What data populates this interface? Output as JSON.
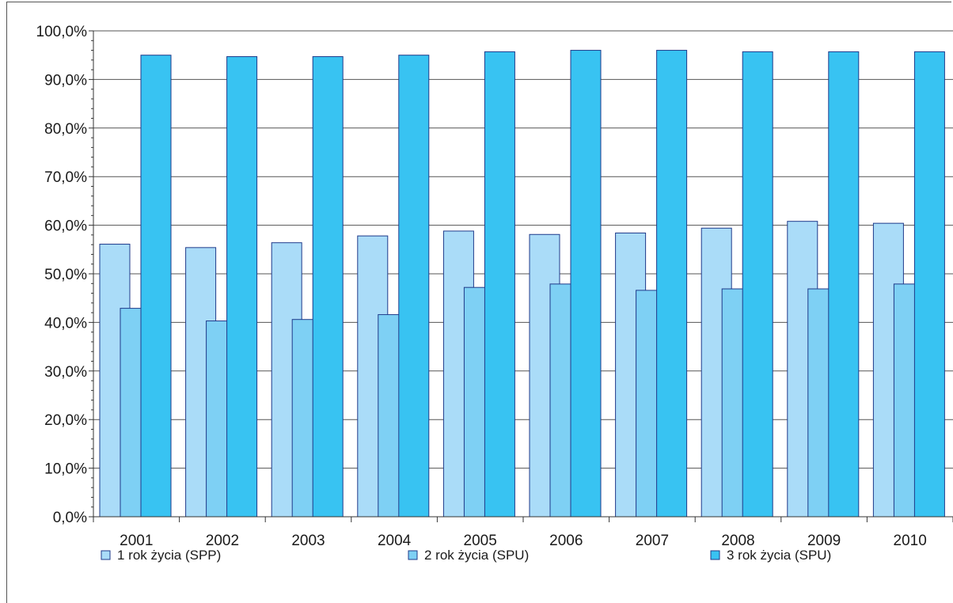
{
  "chart_data": {
    "type": "bar",
    "categories": [
      "2001",
      "2002",
      "2003",
      "2004",
      "2005",
      "2006",
      "2007",
      "2008",
      "2009",
      "2010"
    ],
    "series": [
      {
        "name": "1 rok życia (SPP)",
        "color": "#aadcf8",
        "values": [
          56.1,
          55.4,
          56.4,
          57.8,
          58.8,
          58.1,
          58.4,
          59.4,
          60.8,
          60.4
        ]
      },
      {
        "name": "2 rok życia (SPU)",
        "color": "#7ed0f4",
        "values": [
          42.9,
          40.3,
          40.6,
          41.6,
          47.2,
          47.9,
          46.6,
          46.9,
          46.9,
          47.9
        ]
      },
      {
        "name": "3 rok życia (SPU)",
        "color": "#38c3f2",
        "values": [
          95.0,
          94.7,
          94.7,
          95.0,
          95.7,
          96.0,
          96.0,
          95.7,
          95.7,
          95.7
        ]
      }
    ],
    "y_ticks": [
      "0,0%",
      "10,0%",
      "20,0%",
      "30,0%",
      "40,0%",
      "50,0%",
      "60,0%",
      "70,0%",
      "80,0%",
      "90,0%",
      "100,0%"
    ],
    "ylim": [
      0,
      100
    ],
    "grid": true,
    "legend_position": "bottom"
  }
}
